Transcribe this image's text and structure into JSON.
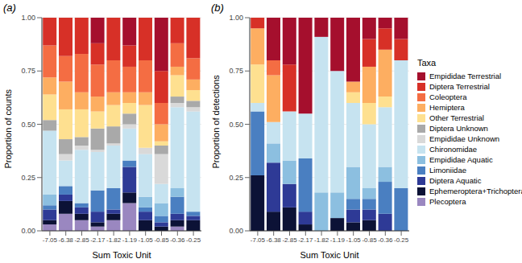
{
  "legend_title": "Taxa",
  "chart_data": [
    {
      "type": "bar",
      "title": "(a)",
      "stacked": true,
      "grid": true,
      "x_label": "Sum Toxic Unit",
      "y_label": "Proportion of counts",
      "categories": [
        "-7.05",
        "-6.38",
        "-2.85",
        "-2.17",
        "-1.82",
        "-1.19",
        "-1.05",
        "-0.85",
        "-0.36",
        "-0.25"
      ],
      "ylim": [
        0,
        1
      ],
      "yticks": [
        {
          "value": 0,
          "label": "0.00"
        },
        {
          "value": 0.25,
          "label": "0.25"
        },
        {
          "value": 0.5,
          "label": "0.50"
        },
        {
          "value": 0.75,
          "label": "0.75"
        },
        {
          "value": 1,
          "label": "1.00"
        }
      ],
      "series": [
        {
          "name": "Empididae Terrestrial",
          "color": "#a50f2d",
          "values": [
            0,
            0,
            0,
            0.12,
            0,
            0.13,
            0,
            0.25,
            0,
            0
          ]
        },
        {
          "name": "Diptera Terrestrial",
          "color": "#d73027",
          "values": [
            0.13,
            0.18,
            0.17,
            0.1,
            0.2,
            0.1,
            0.2,
            0.15,
            0.12,
            0.19
          ]
        },
        {
          "name": "Coleoptera",
          "color": "#f46d43",
          "values": [
            0.15,
            0.12,
            0.18,
            0.15,
            0.15,
            0.12,
            0.15,
            0.1,
            0.11,
            0.1
          ]
        },
        {
          "name": "Hemiptera",
          "color": "#fdae61",
          "values": [
            0.08,
            0.13,
            0.08,
            0.07,
            0.06,
            0.05,
            0.06,
            0.08,
            0.04,
            0.05
          ]
        },
        {
          "name": "Other Terrestrial",
          "color": "#fee090",
          "values": [
            0.12,
            0.14,
            0.13,
            0.08,
            0.1,
            0.05,
            0.2,
            0.02,
            0.1,
            0.05
          ]
        },
        {
          "name": "Diptera Unknown",
          "color": "#a9a9a9",
          "values": [
            0.05,
            0.07,
            0.04,
            0.1,
            0.08,
            0.05,
            0,
            0.04,
            0.03,
            0.03
          ]
        },
        {
          "name": "Empididae Unknown",
          "color": "#d9d9d9",
          "values": [
            0,
            0.03,
            0.02,
            0.01,
            0.01,
            0.02,
            0.03,
            0.14,
            0.02,
            0.02
          ]
        },
        {
          "name": "Chironomidae",
          "color": "#c6e3f0",
          "values": [
            0.3,
            0.12,
            0.25,
            0.18,
            0.2,
            0.15,
            0.2,
            0.09,
            0.38,
            0.47
          ]
        },
        {
          "name": "Empididae Aquatic",
          "color": "#8cbfe0",
          "values": [
            0.05,
            0,
            0,
            0,
            0,
            0,
            0.05,
            0.06,
            0.04,
            0
          ]
        },
        {
          "name": "Limoniidae",
          "color": "#4a7fc1",
          "values": [
            0.02,
            0.04,
            0.02,
            0.1,
            0.1,
            0.03,
            0.02,
            0.03,
            0.08,
            0.02
          ]
        },
        {
          "name": "Diptera Aquatic",
          "color": "#2e3a96",
          "values": [
            0.05,
            0.03,
            0.03,
            0.05,
            0.02,
            0.12,
            0.04,
            0.02,
            0.03,
            0.02
          ]
        },
        {
          "name": "Ephemeroptera+Trichoptera",
          "color": "#0c1236",
          "values": [
            0.02,
            0.06,
            0.03,
            0.02,
            0.03,
            0.05,
            0.05,
            0.02,
            0.03,
            0.05
          ]
        },
        {
          "name": "Plecoptera",
          "color": "#9a87c0",
          "values": [
            0.03,
            0.08,
            0.05,
            0.02,
            0.05,
            0.13,
            0,
            0,
            0.02,
            0
          ]
        }
      ]
    },
    {
      "type": "bar",
      "title": "(b)",
      "stacked": true,
      "grid": true,
      "x_label": "Sum Toxic Unit",
      "y_label": "Proportion of detections",
      "categories": [
        "-7.05",
        "-6.38",
        "-2.85",
        "-2.17",
        "-1.82",
        "-1.19",
        "-1.05",
        "-0.85",
        "-0.36",
        "-0.25"
      ],
      "ylim": [
        0,
        1
      ],
      "yticks": [
        {
          "value": 0,
          "label": "0.00"
        },
        {
          "value": 0.25,
          "label": "0.25"
        },
        {
          "value": 0.5,
          "label": "0.50"
        },
        {
          "value": 0.75,
          "label": "0.75"
        },
        {
          "value": 1,
          "label": "1.00"
        }
      ],
      "series": [
        {
          "name": "Empididae Terrestrial",
          "color": "#a50f2d",
          "values": [
            0,
            0.2,
            0.22,
            0.45,
            0.09,
            0.25,
            0.3,
            0.1,
            0.05,
            0.1
          ]
        },
        {
          "name": "Diptera Terrestrial",
          "color": "#d73027",
          "values": [
            0.05,
            0,
            0.22,
            0,
            0,
            0,
            0,
            0.13,
            0.1,
            0.1
          ]
        },
        {
          "name": "Coleoptera",
          "color": "#f46d43",
          "values": [
            0,
            0.07,
            0,
            0,
            0,
            0,
            0,
            0,
            0,
            0
          ]
        },
        {
          "name": "Hemiptera",
          "color": "#fdae61",
          "values": [
            0.17,
            0.22,
            0,
            0,
            0,
            0,
            0.05,
            0.17,
            0.22,
            0
          ]
        },
        {
          "name": "Other Terrestrial",
          "color": "#fee090",
          "values": [
            0.18,
            0,
            0,
            0,
            0,
            0,
            0.05,
            0.1,
            0.05,
            0
          ]
        },
        {
          "name": "Diptera Unknown",
          "color": "#a9a9a9",
          "values": [
            0,
            0,
            0,
            0,
            0,
            0,
            0,
            0,
            0,
            0
          ]
        },
        {
          "name": "Empididae Unknown",
          "color": "#d9d9d9",
          "values": [
            0,
            0,
            0,
            0,
            0,
            0,
            0,
            0,
            0,
            0
          ]
        },
        {
          "name": "Chironomidae",
          "color": "#c6e3f0",
          "values": [
            0.04,
            0.1,
            0.23,
            0.21,
            0.73,
            0.57,
            0.3,
            0.3,
            0.28,
            0.6
          ]
        },
        {
          "name": "Empididae Aquatic",
          "color": "#8cbfe0",
          "values": [
            0,
            0.09,
            0.11,
            0,
            0.18,
            0.12,
            0.15,
            0.05,
            0.07,
            0
          ]
        },
        {
          "name": "Limoniidae",
          "color": "#4a7fc1",
          "values": [
            0.3,
            0,
            0,
            0.25,
            0,
            0,
            0.05,
            0.05,
            0.15,
            0.2
          ]
        },
        {
          "name": "Diptera Aquatic",
          "color": "#2e3a96",
          "values": [
            0,
            0.23,
            0.11,
            0.06,
            0,
            0,
            0.06,
            0.05,
            0.08,
            0
          ]
        },
        {
          "name": "Ephemeroptera+Trichoptera",
          "color": "#0c1236",
          "values": [
            0.26,
            0.09,
            0.11,
            0.03,
            0,
            0.06,
            0.04,
            0.05,
            0,
            0
          ]
        },
        {
          "name": "Plecoptera",
          "color": "#9a87c0",
          "values": [
            0,
            0,
            0,
            0,
            0,
            0,
            0,
            0,
            0,
            0
          ]
        }
      ]
    }
  ]
}
